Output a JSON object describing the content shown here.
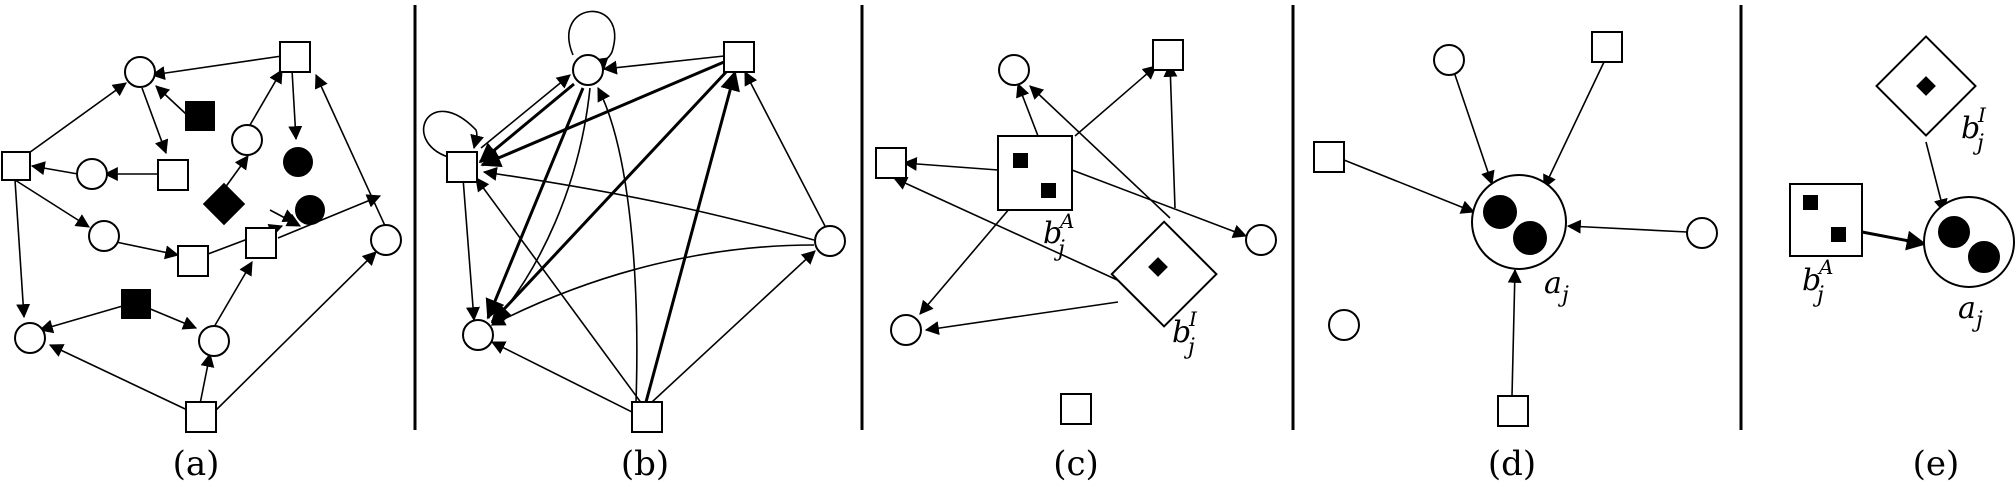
{
  "panels": [
    {
      "id": "a",
      "caption": "(a)"
    },
    {
      "id": "b",
      "caption": "(b)"
    },
    {
      "id": "c",
      "caption": "(c)"
    },
    {
      "id": "d",
      "caption": "(d)"
    },
    {
      "id": "e",
      "caption": "(e)"
    }
  ],
  "math_labels": {
    "b_letter": "b",
    "a_letter": "a",
    "sub_j": "j",
    "sup_A": "A",
    "sup_I": "I"
  }
}
